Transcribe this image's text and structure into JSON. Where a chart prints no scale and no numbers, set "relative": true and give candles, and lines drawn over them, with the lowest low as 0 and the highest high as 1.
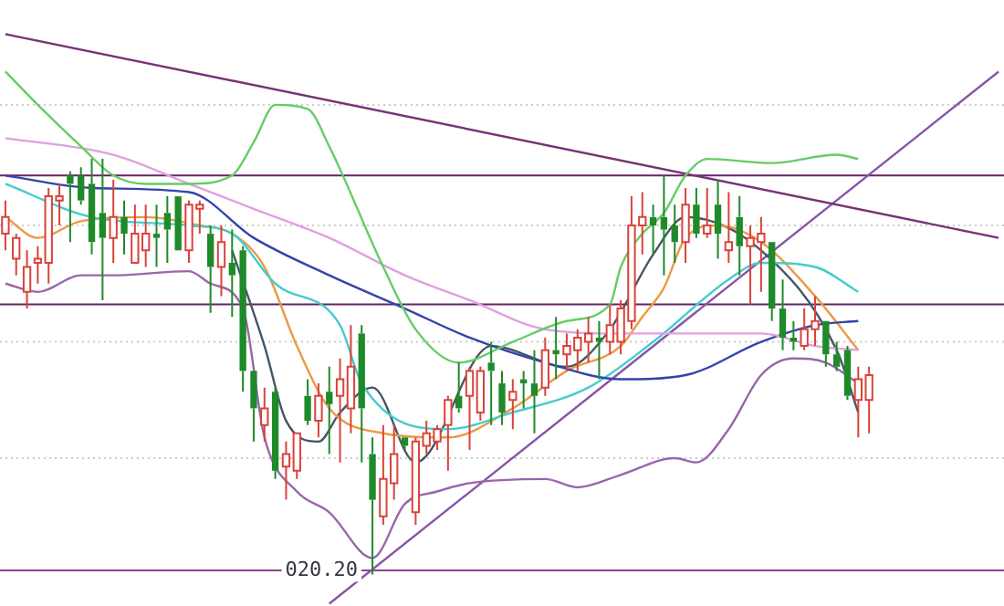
{
  "chart_data": {
    "type": "candlestick",
    "relative": true,
    "tick_labels": false,
    "legend": false,
    "categories": [
      null,
      null,
      null,
      null,
      null,
      null,
      null,
      null,
      null,
      null,
      null,
      null,
      null,
      null,
      null,
      null,
      null,
      null,
      null,
      null,
      null,
      null,
      null,
      null,
      null,
      null,
      null,
      null,
      null,
      null,
      null,
      null,
      null,
      null,
      null,
      null,
      null,
      null,
      null,
      null,
      null,
      null,
      null,
      null,
      null,
      null,
      null,
      null,
      null,
      null,
      null,
      null,
      null,
      null,
      null,
      null,
      null,
      null,
      null,
      null,
      null,
      null,
      null,
      null,
      null,
      null,
      null,
      null,
      null,
      null,
      null,
      null,
      null,
      null,
      null,
      null,
      null,
      null,
      null,
      null,
      null,
      null,
      null,
      null,
      null,
      null,
      null,
      null,
      null,
      null,
      null,
      null,
      null
    ],
    "ohlc": [
      [
        0.82,
        0.9,
        0.78,
        0.86
      ],
      [
        0.76,
        0.82,
        0.72,
        0.81
      ],
      [
        0.68,
        0.78,
        0.64,
        0.74
      ],
      [
        0.75,
        0.79,
        0.7,
        0.76
      ],
      [
        0.75,
        0.93,
        0.7,
        0.91
      ],
      [
        0.9,
        0.94,
        0.84,
        0.91
      ],
      [
        0.96,
        0.97,
        0.8,
        0.94
      ],
      [
        0.96,
        0.98,
        0.89,
        0.9
      ],
      [
        0.94,
        1.0,
        0.77,
        0.8
      ],
      [
        0.87,
        1.0,
        0.66,
        0.81
      ],
      [
        0.81,
        0.95,
        0.75,
        0.86
      ],
      [
        0.86,
        0.9,
        0.77,
        0.82
      ],
      [
        0.75,
        0.89,
        0.75,
        0.82
      ],
      [
        0.78,
        0.89,
        0.74,
        0.82
      ],
      [
        0.82,
        0.89,
        0.74,
        0.81
      ],
      [
        0.87,
        0.91,
        0.75,
        0.83
      ],
      [
        0.91,
        0.91,
        0.78,
        0.78
      ],
      [
        0.78,
        0.9,
        0.75,
        0.89
      ],
      [
        0.88,
        0.9,
        0.82,
        0.89
      ],
      [
        0.82,
        0.84,
        0.63,
        0.74
      ],
      [
        0.74,
        0.84,
        0.67,
        0.8
      ],
      [
        0.75,
        0.83,
        0.62,
        0.72
      ],
      [
        0.78,
        0.79,
        0.44,
        0.49
      ],
      [
        0.49,
        0.49,
        0.32,
        0.4
      ],
      [
        0.36,
        0.45,
        0.32,
        0.4
      ],
      [
        0.44,
        0.45,
        0.23,
        0.25
      ],
      [
        0.26,
        0.32,
        0.18,
        0.29
      ],
      [
        0.25,
        0.34,
        0.23,
        0.34
      ],
      [
        0.43,
        0.47,
        0.36,
        0.37
      ],
      [
        0.37,
        0.46,
        0.33,
        0.43
      ],
      [
        0.44,
        0.5,
        0.29,
        0.41
      ],
      [
        0.43,
        0.52,
        0.27,
        0.47
      ],
      [
        0.4,
        0.6,
        0.34,
        0.5
      ],
      [
        0.58,
        0.6,
        0.27,
        0.4
      ],
      [
        0.29,
        0.33,
        0.0,
        0.18
      ],
      [
        0.14,
        0.36,
        0.12,
        0.23
      ],
      [
        0.22,
        0.36,
        0.18,
        0.29
      ],
      [
        0.33,
        0.33,
        0.3,
        0.31
      ],
      [
        0.15,
        0.33,
        0.12,
        0.32
      ],
      [
        0.31,
        0.37,
        0.29,
        0.34
      ],
      [
        0.32,
        0.36,
        0.3,
        0.35
      ],
      [
        0.36,
        0.43,
        0.25,
        0.42
      ],
      [
        0.43,
        0.51,
        0.39,
        0.4
      ],
      [
        0.43,
        0.5,
        0.3,
        0.49
      ],
      [
        0.39,
        0.5,
        0.37,
        0.49
      ],
      [
        0.51,
        0.56,
        0.36,
        0.49
      ],
      [
        0.46,
        0.49,
        0.36,
        0.39
      ],
      [
        0.42,
        0.47,
        0.35,
        0.44
      ],
      [
        0.47,
        0.49,
        0.4,
        0.46
      ],
      [
        0.46,
        0.54,
        0.34,
        0.43
      ],
      [
        0.45,
        0.57,
        0.43,
        0.54
      ],
      [
        0.54,
        0.62,
        0.47,
        0.53
      ],
      [
        0.53,
        0.58,
        0.49,
        0.55
      ],
      [
        0.54,
        0.59,
        0.49,
        0.57
      ],
      [
        0.56,
        0.62,
        0.51,
        0.58
      ],
      [
        0.57,
        0.61,
        0.47,
        0.56
      ],
      [
        0.56,
        0.65,
        0.53,
        0.6
      ],
      [
        0.56,
        0.66,
        0.53,
        0.64
      ],
      [
        0.61,
        0.91,
        0.59,
        0.84
      ],
      [
        0.84,
        0.92,
        0.77,
        0.86
      ],
      [
        0.86,
        0.89,
        0.77,
        0.84
      ],
      [
        0.86,
        0.96,
        0.72,
        0.83
      ],
      [
        0.84,
        0.89,
        0.75,
        0.8
      ],
      [
        0.8,
        0.93,
        0.75,
        0.89
      ],
      [
        0.89,
        0.93,
        0.81,
        0.82
      ],
      [
        0.82,
        0.93,
        0.81,
        0.84
      ],
      [
        0.89,
        0.95,
        0.76,
        0.82
      ],
      [
        0.78,
        0.92,
        0.75,
        0.8
      ],
      [
        0.86,
        0.91,
        0.72,
        0.79
      ],
      [
        0.79,
        0.84,
        0.65,
        0.81
      ],
      [
        0.8,
        0.86,
        0.68,
        0.82
      ],
      [
        0.8,
        0.8,
        0.61,
        0.64
      ],
      [
        0.64,
        0.71,
        0.54,
        0.57
      ],
      [
        0.57,
        0.61,
        0.54,
        0.56
      ],
      [
        0.55,
        0.64,
        0.54,
        0.59
      ],
      [
        0.59,
        0.67,
        0.55,
        0.61
      ],
      [
        0.61,
        0.61,
        0.5,
        0.53
      ],
      [
        0.53,
        0.56,
        0.49,
        0.5
      ],
      [
        0.54,
        0.55,
        0.42,
        0.43
      ],
      [
        0.42,
        0.5,
        0.33,
        0.47
      ],
      [
        0.42,
        0.5,
        0.34,
        0.48
      ],
      null,
      null,
      null,
      null,
      null,
      null,
      null,
      null,
      null,
      null,
      null,
      null
    ],
    "series": [
      {
        "type": "line",
        "color": "#66cc66",
        "values": [
          1.21,
          null,
          null,
          1.13,
          null,
          null,
          null,
          1.03,
          null,
          null,
          0.96,
          null,
          null,
          0.94,
          null,
          null,
          null,
          0.94,
          null,
          null,
          null,
          0.96,
          null,
          1.04,
          null,
          1.13,
          null,
          null,
          1.12,
          null,
          1.03,
          null,
          null,
          null,
          null,
          0.74,
          null,
          null,
          0.59,
          null,
          null,
          null,
          0.51,
          null,
          null,
          null,
          null,
          0.56,
          null,
          null,
          null,
          null,
          0.61,
          null,
          null,
          null,
          0.65,
          0.74,
          null,
          0.82,
          null,
          0.87,
          null,
          0.96,
          null,
          1.0,
          null,
          null,
          null,
          null,
          null,
          0.99,
          null,
          null,
          null,
          null,
          null,
          1.01,
          null,
          1.0,
          null,
          null,
          null,
          null,
          null,
          null,
          null,
          null,
          null,
          null,
          null,
          null,
          null
        ]
      },
      {
        "type": "line",
        "color": "#9966aa",
        "values": [
          0.7,
          null,
          null,
          0.68,
          null,
          null,
          null,
          0.72,
          null,
          null,
          0.72,
          null,
          null,
          null,
          null,
          null,
          null,
          0.73,
          null,
          0.7,
          null,
          null,
          0.64,
          null,
          0.33,
          null,
          null,
          0.2,
          null,
          null,
          0.15,
          null,
          null,
          null,
          0.04,
          null,
          null,
          0.17,
          null,
          null,
          0.2,
          null,
          null,
          0.22,
          null,
          null,
          null,
          null,
          null,
          null,
          0.23,
          null,
          null,
          0.21,
          null,
          null,
          null,
          0.24,
          null,
          null,
          null,
          null,
          0.28,
          null,
          0.27,
          null,
          null,
          0.35,
          null,
          null,
          0.48,
          null,
          null,
          0.52,
          null,
          null,
          0.51,
          null,
          null,
          0.46,
          null,
          null,
          null,
          null,
          null,
          null,
          null,
          null,
          null,
          null,
          null,
          null,
          null
        ]
      },
      {
        "type": "line",
        "color": "#e0a0e0",
        "values": [
          1.05,
          null,
          null,
          null,
          null,
          null,
          null,
          null,
          null,
          null,
          1.01,
          null,
          null,
          null,
          null,
          null,
          null,
          0.94,
          null,
          null,
          null,
          null,
          null,
          0.88,
          null,
          null,
          null,
          null,
          null,
          null,
          0.81,
          null,
          null,
          null,
          null,
          null,
          null,
          0.72,
          null,
          null,
          null,
          null,
          null,
          0.66,
          null,
          null,
          null,
          null,
          null,
          null,
          0.59,
          null,
          null,
          null,
          null,
          null,
          null,
          0.58,
          null,
          null,
          null,
          null,
          null,
          0.58,
          null,
          null,
          null,
          null,
          null,
          null,
          0.58,
          null,
          null,
          null,
          null,
          0.55,
          null,
          null,
          null,
          0.54,
          null,
          null,
          null,
          null,
          null,
          null,
          null,
          null,
          null,
          null,
          null,
          null,
          null
        ]
      },
      {
        "type": "line",
        "color": "#3344aa",
        "values": [
          0.96,
          null,
          null,
          null,
          null,
          null,
          null,
          null,
          0.93,
          null,
          null,
          null,
          null,
          null,
          null,
          null,
          null,
          0.92,
          null,
          null,
          null,
          null,
          null,
          0.81,
          null,
          null,
          null,
          null,
          null,
          null,
          0.72,
          null,
          null,
          null,
          null,
          null,
          null,
          0.64,
          null,
          null,
          null,
          null,
          null,
          0.57,
          null,
          null,
          null,
          null,
          null,
          null,
          0.51,
          null,
          null,
          null,
          null,
          null,
          null,
          0.47,
          null,
          null,
          null,
          null,
          null,
          0.48,
          null,
          null,
          null,
          null,
          null,
          null,
          0.56,
          null,
          null,
          null,
          null,
          0.6,
          null,
          null,
          null,
          0.61,
          null,
          null,
          null,
          null,
          null,
          null,
          null,
          null,
          null,
          null,
          null,
          null,
          null
        ]
      },
      {
        "type": "line",
        "color": "#44cccc",
        "values": [
          0.94,
          null,
          null,
          null,
          null,
          null,
          null,
          null,
          0.86,
          null,
          null,
          null,
          null,
          null,
          null,
          null,
          null,
          0.84,
          null,
          null,
          null,
          0.82,
          null,
          null,
          null,
          0.7,
          null,
          null,
          null,
          null,
          null,
          0.6,
          null,
          0.46,
          null,
          null,
          null,
          null,
          null,
          null,
          null,
          0.35,
          null,
          null,
          null,
          null,
          null,
          0.39,
          null,
          null,
          null,
          null,
          null,
          null,
          0.45,
          null,
          null,
          null,
          null,
          null,
          0.56,
          null,
          null,
          null,
          null,
          null,
          null,
          0.71,
          null,
          null,
          0.75,
          null,
          null,
          null,
          null,
          0.74,
          null,
          null,
          null,
          0.68,
          null,
          null,
          null,
          null,
          null,
          null,
          null,
          null,
          null,
          null,
          null,
          null,
          null
        ]
      },
      {
        "type": "line",
        "color": "#ee9944",
        "values": [
          0.86,
          null,
          null,
          0.81,
          null,
          null,
          null,
          0.85,
          null,
          null,
          null,
          null,
          null,
          0.86,
          null,
          null,
          null,
          null,
          0.84,
          null,
          null,
          0.82,
          null,
          null,
          0.74,
          null,
          null,
          0.55,
          null,
          null,
          0.4,
          null,
          null,
          null,
          null,
          0.34,
          null,
          null,
          null,
          null,
          null,
          0.33,
          null,
          null,
          null,
          null,
          null,
          0.4,
          null,
          null,
          null,
          null,
          0.49,
          null,
          null,
          null,
          null,
          0.55,
          null,
          0.62,
          null,
          0.69,
          null,
          0.81,
          null,
          null,
          0.84,
          null,
          null,
          null,
          0.8,
          null,
          null,
          null,
          null,
          0.67,
          null,
          null,
          null,
          0.54,
          null,
          null,
          null,
          null,
          null,
          null,
          null,
          null,
          null,
          null,
          null,
          null,
          null
        ]
      },
      {
        "type": "line",
        "color": "#445566",
        "values": [
          null,
          null,
          null,
          null,
          null,
          null,
          null,
          null,
          null,
          null,
          null,
          null,
          null,
          null,
          null,
          null,
          null,
          null,
          null,
          null,
          null,
          0.78,
          null,
          null,
          0.55,
          null,
          0.37,
          null,
          null,
          0.32,
          null,
          0.39,
          null,
          null,
          0.45,
          null,
          null,
          null,
          0.27,
          null,
          null,
          null,
          null,
          null,
          null,
          0.55,
          null,
          null,
          null,
          null,
          null,
          null,
          0.5,
          null,
          null,
          null,
          0.59,
          null,
          null,
          null,
          0.77,
          null,
          null,
          0.86,
          null,
          null,
          null,
          null,
          null,
          null,
          0.78,
          null,
          null,
          null,
          null,
          null,
          null,
          0.54,
          null,
          0.39,
          null,
          null,
          null,
          null,
          null,
          null,
          null,
          null,
          null,
          null,
          null,
          null,
          null
        ]
      },
      {
        "type": "line",
        "color": "#773377",
        "values": [
          1.3,
          null,
          null,
          null,
          null,
          null,
          null,
          null,
          null,
          null,
          null,
          null,
          null,
          null,
          null,
          null,
          null,
          null,
          null,
          null,
          null,
          null,
          null,
          null,
          null,
          null,
          null,
          null,
          null,
          null,
          null,
          null,
          null,
          null,
          null,
          null,
          null,
          null,
          null,
          null,
          null,
          null,
          null,
          null,
          null,
          null,
          null,
          null,
          null,
          null,
          null,
          null,
          null,
          null,
          null,
          null,
          null,
          null,
          null,
          null,
          null,
          null,
          null,
          null,
          null,
          null,
          null,
          null,
          null,
          null,
          null,
          null,
          null,
          null,
          null,
          null,
          null,
          null,
          null,
          null,
          null,
          null,
          null,
          null,
          null,
          null,
          null,
          null,
          null,
          null,
          null,
          null,
          0.81
        ]
      },
      {
        "type": "line",
        "color": "#8855aa",
        "values": [
          null,
          null,
          null,
          null,
          null,
          null,
          null,
          null,
          null,
          null,
          null,
          null,
          null,
          null,
          null,
          null,
          null,
          null,
          null,
          null,
          null,
          null,
          null,
          null,
          null,
          null,
          null,
          null,
          null,
          null,
          -0.07,
          null,
          null,
          null,
          null,
          null,
          null,
          null,
          null,
          null,
          null,
          null,
          null,
          null,
          null,
          null,
          null,
          null,
          null,
          null,
          null,
          null,
          null,
          null,
          null,
          null,
          null,
          null,
          null,
          null,
          null,
          null,
          null,
          null,
          null,
          null,
          null,
          null,
          null,
          null,
          null,
          null,
          null,
          null,
          null,
          null,
          null,
          null,
          null,
          null,
          null,
          null,
          null,
          null,
          null,
          null,
          null,
          null,
          null,
          null,
          null,
          null,
          1.21
        ]
      }
    ],
    "ref_lines": [
      {
        "axis": "y",
        "value": 1.13,
        "color": "#cccccc",
        "line_style": "dotted"
      },
      {
        "axis": "y",
        "value": 0.84,
        "color": "#cccccc",
        "line_style": "dotted"
      },
      {
        "axis": "y",
        "value": 0.56,
        "color": "#cccccc",
        "line_style": "dotted"
      },
      {
        "axis": "y",
        "value": 0.28,
        "color": "#cccccc",
        "line_style": "dotted"
      },
      {
        "axis": "y",
        "value": 0.96,
        "color": "#662266",
        "line_style": "solid"
      },
      {
        "axis": "y",
        "value": 0.65,
        "color": "#662266",
        "line_style": "solid"
      },
      {
        "axis": "y",
        "value": 0.01,
        "color": "#884488",
        "line_style": "solid"
      }
    ],
    "annotations": [
      {
        "text": "020.20",
        "y": 0
      }
    ]
  }
}
